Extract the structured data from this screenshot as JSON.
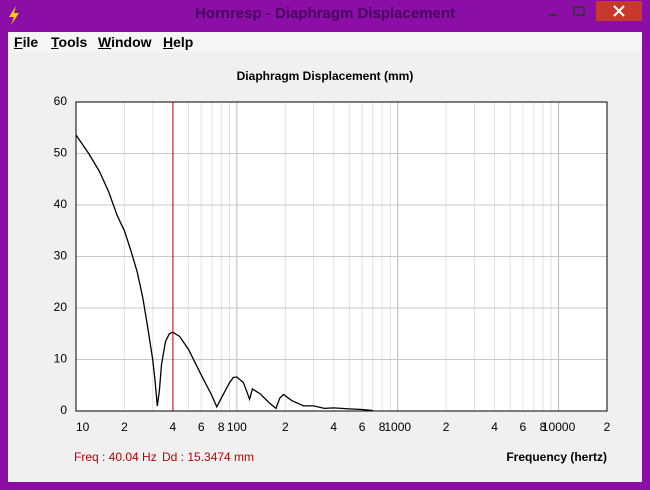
{
  "window": {
    "title": "Hornresp - Diaphragm Displacement",
    "menu": [
      "File",
      "Tools",
      "Window",
      "Help"
    ]
  },
  "chart_data": {
    "type": "line",
    "title": "Diaphragm Displacement (mm)",
    "x_label": "Frequency (hertz)",
    "log_x": true,
    "grid": true,
    "color": "#000000",
    "x": [
      10,
      12,
      14,
      16,
      18,
      20,
      22,
      24,
      26,
      28,
      30,
      31,
      32,
      33,
      34,
      36,
      38,
      40,
      44,
      50,
      60,
      70,
      75,
      80,
      90,
      95,
      100,
      110,
      120,
      125,
      140,
      160,
      175,
      185,
      195,
      220,
      260,
      300,
      350,
      400,
      500,
      600,
      700
    ],
    "values": [
      53.6,
      50,
      46.5,
      42.5,
      38,
      35,
      31,
      27,
      22,
      16,
      10,
      6,
      1,
      4,
      9,
      13.5,
      15,
      15.3,
      14.5,
      12,
      7,
      3,
      0.8,
      2.5,
      5.5,
      6.5,
      6.6,
      5.5,
      2.3,
      4.3,
      3.3,
      1.5,
      0.5,
      2.5,
      3.2,
      2,
      1,
      1,
      0.5,
      0.6,
      0.4,
      0.3,
      0.1
    ],
    "xlim": [
      10,
      20000
    ],
    "ylim": [
      0,
      60
    ],
    "yticks": [
      0,
      10,
      20,
      30,
      40,
      50,
      60
    ],
    "xticks": [
      10,
      {
        "value": 20,
        "label": "2"
      },
      {
        "value": 40,
        "label": "4"
      },
      {
        "value": 60,
        "label": "6"
      },
      {
        "value": 80,
        "label": "8"
      },
      100,
      {
        "value": 200,
        "label": "2"
      },
      {
        "value": 400,
        "label": "4"
      },
      {
        "value": 600,
        "label": "6"
      },
      {
        "value": 800,
        "label": "8"
      },
      1000,
      {
        "value": 2000,
        "label": "2"
      },
      {
        "value": 4000,
        "label": "4"
      },
      {
        "value": 6000,
        "label": "6"
      },
      {
        "value": 8000,
        "label": "8"
      },
      10000,
      {
        "value": 20000,
        "label": "2"
      }
    ],
    "xminor": [
      30,
      50,
      70,
      90,
      300,
      500,
      700,
      900,
      3000,
      5000,
      7000,
      9000
    ],
    "marker_x": 40.04,
    "marker_color": "#c00000",
    "status": [
      "Freq : 40.04 Hz",
      "Dd : 15.3474 mm"
    ]
  }
}
